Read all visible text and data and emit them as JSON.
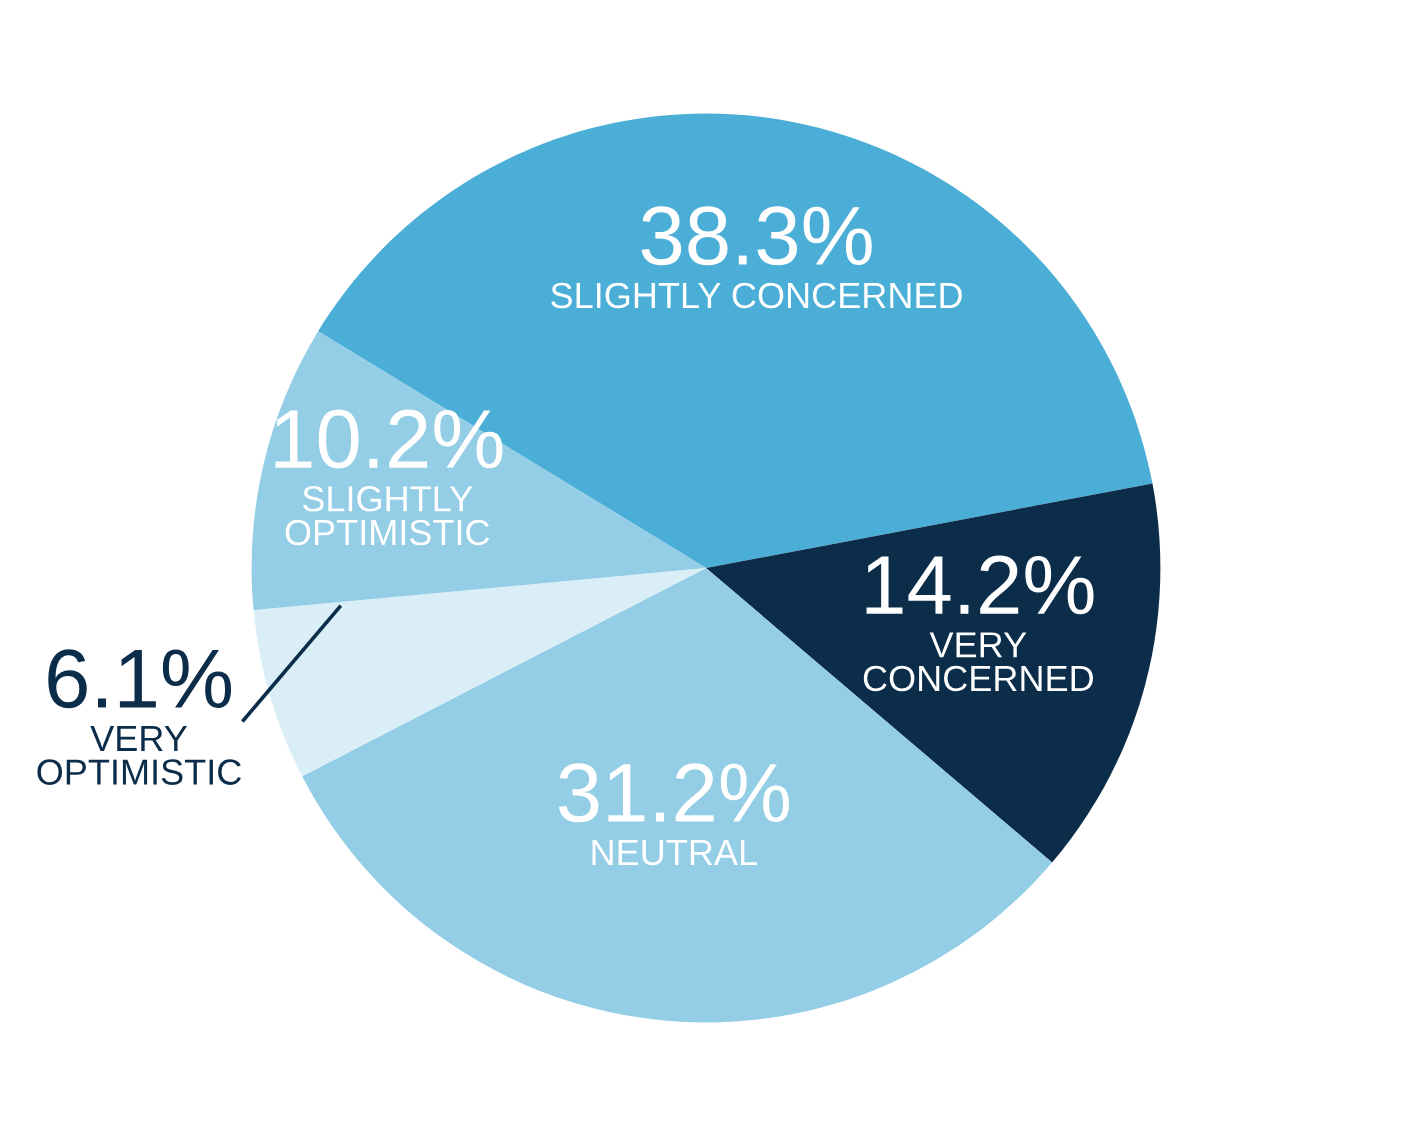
{
  "chart_data": {
    "type": "pie",
    "categories": [
      "SLIGHTLY CONCERNED",
      "VERY CONCERNED",
      "NEUTRAL",
      "VERY OPTIMISTIC",
      "SLIGHTLY OPTIMISTIC"
    ],
    "values": [
      38.3,
      14.2,
      31.2,
      6.1,
      10.2
    ],
    "value_labels": [
      "38.3%",
      "14.2%",
      "31.2%",
      "6.1%",
      "10.2%"
    ],
    "colors": [
      "#4aaed6",
      "#0b2d4a",
      "#93cde6",
      "#d9eef7",
      "#93cde6"
    ]
  }
}
